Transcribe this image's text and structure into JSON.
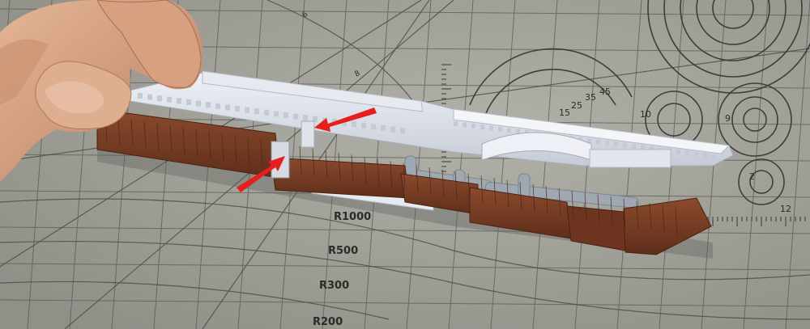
{
  "photo": {
    "subject": "plastic model kit parts held over a cutting mat",
    "colors": {
      "mat": "#a9a9a0",
      "mat_lines": "#545450",
      "wood_parts": "#7a3f26",
      "grey_parts": "#d8dde6",
      "sprue": "#9aa3ab",
      "arrow": "#e41d1d",
      "skin": "#d9a786"
    }
  },
  "mat_labels": {
    "r1000": "R1000",
    "r500": "R500",
    "r300": "R300",
    "r200": "R200",
    "d45": "45",
    "d35": "35",
    "d25": "25",
    "d15": "15",
    "t10": "10",
    "t9": "9",
    "t2": "2",
    "s12": "12",
    "s6": "6",
    "s8": "8"
  }
}
